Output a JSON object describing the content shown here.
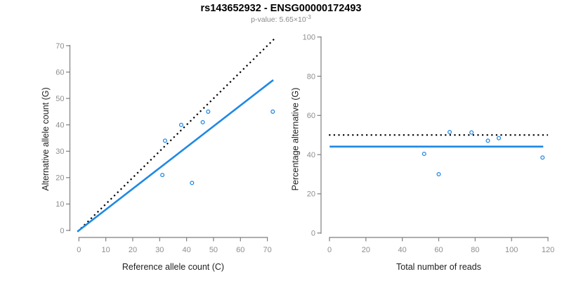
{
  "header": {
    "title": "rs143652932 - ENSG00000172493",
    "subtitle_prefix": "p-value: 5.65×10",
    "subtitle_exponent": "-3"
  },
  "colors": {
    "accent_blue": "#1E88E5",
    "point": "#1E88E5",
    "dotted_line": "#000000",
    "axis": "#7e7e7e",
    "tick_label": "#8e8e8e",
    "axis_title": "#1f1f1f",
    "title": "#000000",
    "subtitle": "#8a8a8a",
    "background": "#ffffff"
  },
  "chart_data": [
    {
      "type": "scatter",
      "title": "",
      "xlabel": "Reference allele count (C)",
      "ylabel": "Alternative allele count (G)",
      "xticks": [
        0,
        10,
        20,
        30,
        40,
        50,
        60,
        70
      ],
      "yticks": [
        0,
        10,
        20,
        30,
        40,
        50,
        60,
        70
      ],
      "xlim": [
        -2.5,
        74.5
      ],
      "ylim": [
        -2.5,
        74.5
      ],
      "grid": false,
      "legend": false,
      "points": [
        [
          31,
          21
        ],
        [
          32,
          34
        ],
        [
          38,
          40
        ],
        [
          42,
          18
        ],
        [
          46,
          41
        ],
        [
          48,
          45
        ],
        [
          72,
          45
        ]
      ],
      "lines": [
        {
          "name": "identity-line",
          "style": "dotted",
          "color": "#000000",
          "from": [
            -0.5,
            -0.5
          ],
          "to": [
            72.8,
            72.8
          ]
        },
        {
          "name": "fit-line",
          "style": "solid",
          "color": "#1E88E5",
          "from": [
            -0.5,
            -0.4
          ],
          "to": [
            72.2,
            57.0
          ]
        }
      ]
    },
    {
      "type": "scatter",
      "title": "",
      "xlabel": "Total number of reads",
      "ylabel": "Percentage alternative (G)",
      "xticks": [
        0,
        20,
        40,
        60,
        80,
        100,
        120
      ],
      "yticks": [
        0,
        20,
        40,
        60,
        80,
        100
      ],
      "xlim": [
        -4,
        124
      ],
      "ylim": [
        -4,
        104
      ],
      "grid": false,
      "legend": false,
      "points": [
        [
          52,
          40.4
        ],
        [
          60,
          30.0
        ],
        [
          66,
          51.5
        ],
        [
          78,
          51.3
        ],
        [
          87,
          47.1
        ],
        [
          93,
          48.4
        ],
        [
          117,
          38.5
        ]
      ],
      "lines": [
        {
          "name": "expected-50pct-line",
          "style": "dotted",
          "color": "#000000",
          "from": [
            -0.3,
            50
          ],
          "to": [
            120,
            50
          ]
        },
        {
          "name": "observed-pct-line",
          "style": "solid",
          "color": "#1E88E5",
          "from": [
            0.1,
            44.1
          ],
          "to": [
            117.4,
            44.1
          ]
        }
      ]
    }
  ]
}
